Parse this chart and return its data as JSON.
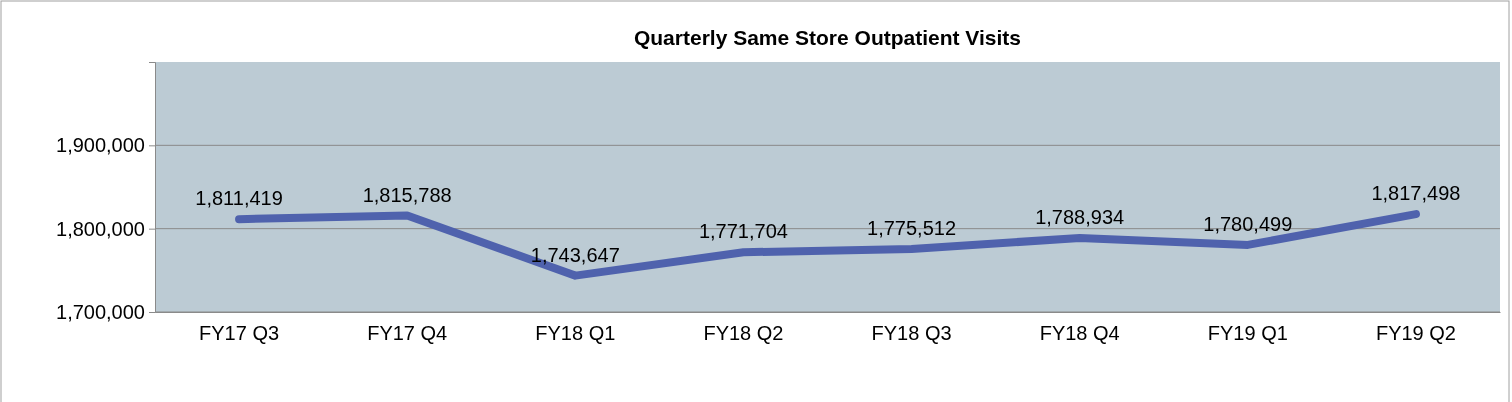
{
  "chart_data": {
    "type": "line",
    "title": "Quarterly Same Store Outpatient Visits",
    "categories": [
      "FY17 Q3",
      "FY17 Q4",
      "FY18 Q1",
      "FY18 Q2",
      "FY18 Q3",
      "FY18 Q4",
      "FY19 Q1",
      "FY19 Q2"
    ],
    "series": [
      {
        "color": "#4f62ad",
        "values": [
          1811419,
          1815788,
          1743647,
          1771704,
          1775512,
          1788934,
          1780499,
          1817498
        ],
        "value_labels": [
          "1,811,419",
          "1,815,788",
          "1,743,647",
          "1,771,704",
          "1,775,512",
          "1,788,934",
          "1,780,499",
          "1,817,498"
        ]
      }
    ],
    "ylim": [
      1700000,
      2000000
    ],
    "yticks": [
      {
        "value": 1700000,
        "label": "1,700,000"
      },
      {
        "value": 1800000,
        "label": "1,800,000"
      },
      {
        "value": 1900000,
        "label": "1,900,000"
      }
    ],
    "grid": "y",
    "marker": "none",
    "line_style": "solid"
  }
}
